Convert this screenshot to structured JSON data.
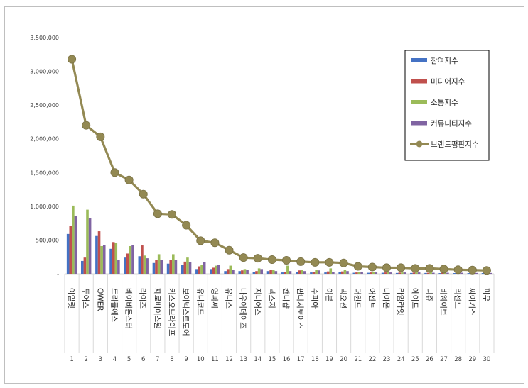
{
  "chart_data": {
    "type": "bar",
    "title": "",
    "xlabel": "",
    "ylabel": "",
    "ylim": [
      0,
      3500000
    ],
    "yticks": [
      "-",
      "500,000",
      "1,000,000",
      "1,500,000",
      "2,000,000",
      "2,500,000",
      "3,000,000",
      "3,500,000"
    ],
    "grid": false,
    "legend_position": "top-right",
    "ranks": [
      "1",
      "2",
      "3",
      "4",
      "5",
      "6",
      "7",
      "8",
      "9",
      "10",
      "11",
      "12",
      "13",
      "14",
      "15",
      "16",
      "17",
      "18",
      "19",
      "20",
      "21",
      "22",
      "23",
      "24",
      "25",
      "26",
      "27",
      "28",
      "29",
      "30"
    ],
    "categories": [
      "아일릿",
      "투어스",
      "QWER",
      "트리플에스",
      "베이비몬스터",
      "라이즈",
      "제로베이스원",
      "키스오브라이프",
      "보이넥스트도어",
      "유니코드",
      "영파씨",
      "유니스",
      "나우어데이즈",
      "지니어스",
      "넥스지",
      "캔디샵",
      "판타지보이즈",
      "수피아",
      "이븐",
      "빅오션",
      "더윈드",
      "어센트",
      "다이몬",
      "라임라잇",
      "에이트",
      "니쥬",
      "비웨이브",
      "리센느",
      "싸이커스",
      "파우"
    ],
    "series": [
      {
        "name": "참여지수",
        "type": "bar",
        "color": "#4472c4",
        "values": [
          590000,
          190000,
          560000,
          370000,
          240000,
          260000,
          160000,
          150000,
          130000,
          70000,
          70000,
          40000,
          40000,
          30000,
          40000,
          20000,
          30000,
          20000,
          20000,
          25000,
          15000,
          15000,
          15000,
          12000,
          12000,
          12000,
          10000,
          10000,
          10000,
          10000
        ]
      },
      {
        "name": "미디어지수",
        "type": "bar",
        "color": "#c0504d",
        "values": [
          710000,
          240000,
          630000,
          470000,
          300000,
          420000,
          210000,
          210000,
          180000,
          110000,
          90000,
          70000,
          50000,
          40000,
          60000,
          30000,
          50000,
          30000,
          35000,
          35000,
          20000,
          20000,
          20000,
          18000,
          18000,
          15000,
          15000,
          12000,
          12000,
          12000
        ]
      },
      {
        "name": "소통지수",
        "type": "bar",
        "color": "#9bbb59",
        "values": [
          1010000,
          950000,
          410000,
          460000,
          410000,
          270000,
          290000,
          290000,
          240000,
          130000,
          120000,
          120000,
          70000,
          80000,
          60000,
          120000,
          60000,
          60000,
          80000,
          55000,
          30000,
          30000,
          25000,
          20000,
          20000,
          20000,
          20000,
          15000,
          15000,
          15000
        ]
      },
      {
        "name": "커뮤니티지수",
        "type": "bar",
        "color": "#8064a2",
        "values": [
          860000,
          820000,
          430000,
          210000,
          430000,
          230000,
          210000,
          200000,
          170000,
          170000,
          130000,
          60000,
          60000,
          70000,
          40000,
          40000,
          40000,
          50000,
          30000,
          40000,
          25000,
          20000,
          20000,
          20000,
          20000,
          15000,
          15000,
          15000,
          12000,
          12000
        ]
      },
      {
        "name": "브랜드평판지수",
        "type": "line",
        "color": "#938953",
        "values": [
          3180000,
          2200000,
          2030000,
          1500000,
          1390000,
          1180000,
          890000,
          880000,
          720000,
          490000,
          460000,
          350000,
          240000,
          230000,
          210000,
          200000,
          180000,
          170000,
          170000,
          160000,
          110000,
          100000,
          90000,
          90000,
          80000,
          80000,
          70000,
          60000,
          55000,
          50000
        ]
      }
    ]
  }
}
